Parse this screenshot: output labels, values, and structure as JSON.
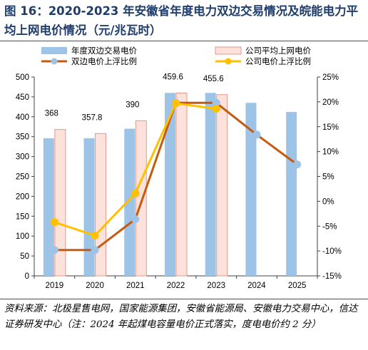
{
  "title": "图 16：2020-2023 年安徽省年度电力双边交易情况及皖能电力平均上网电价情况（元/兆瓦时）",
  "source": "资料来源：北极星售电网，国家能源集团，安徽省能源局、安徽电力交易中心，信达证券研发中心（注：2024 年起煤电容量电价正式落实，度电电价约 2 分）",
  "colors": {
    "title": "#1f3e6e",
    "rule": "#b02418",
    "bar_blue": "#9dc3e6",
    "bar_pink_fill": "#fde2dc",
    "bar_pink_stroke": "#e9958a",
    "line_brown": "#c55a11",
    "line_yellow": "#ffc000",
    "marker_blue": "#9dc3e6"
  },
  "chart_data": {
    "type": "bar+line",
    "categories": [
      "2019",
      "2020",
      "2021",
      "2022",
      "2023",
      "2024",
      "2025"
    ],
    "y_left": {
      "min": 0,
      "max": 500,
      "ticks": [
        "0",
        "50",
        "100",
        "150",
        "200",
        "250",
        "300",
        "350",
        "400",
        "450",
        "500"
      ]
    },
    "y_right": {
      "min": -15,
      "max": 25,
      "ticks": [
        "-15%",
        "-10%",
        "-5%",
        "0%",
        "5%",
        "10%",
        "15%",
        "20%",
        "25%"
      ]
    },
    "legend": [
      {
        "label": "年度双边交易电价",
        "kind": "bar-blue"
      },
      {
        "label": "公司平均上网电价",
        "kind": "bar-pink"
      },
      {
        "label": "双边电价上浮比例",
        "kind": "line-brown"
      },
      {
        "label": "公司电价上浮比例",
        "kind": "line-yellow"
      }
    ],
    "series": [
      {
        "name": "年度双边交易电价",
        "axis": "left",
        "kind": "bar",
        "values": [
          346,
          346,
          370,
          460,
          460,
          435,
          412
        ]
      },
      {
        "name": "公司平均上网电价",
        "axis": "left",
        "kind": "bar",
        "values": [
          368,
          357.8,
          390,
          459.6,
          455.6,
          null,
          null
        ],
        "labels": [
          "368",
          "357.8",
          "390",
          "459.6",
          "455.6",
          "",
          ""
        ]
      },
      {
        "name": "双边电价上浮比例",
        "axis": "right",
        "kind": "line",
        "values": [
          -9.8,
          -9.8,
          -3.6,
          19.8,
          19.8,
          13.4,
          7.4
        ]
      },
      {
        "name": "公司电价上浮比例",
        "axis": "right",
        "kind": "line",
        "values": [
          -4.2,
          -6.9,
          1.6,
          19.7,
          18.6,
          null,
          null
        ]
      }
    ]
  }
}
